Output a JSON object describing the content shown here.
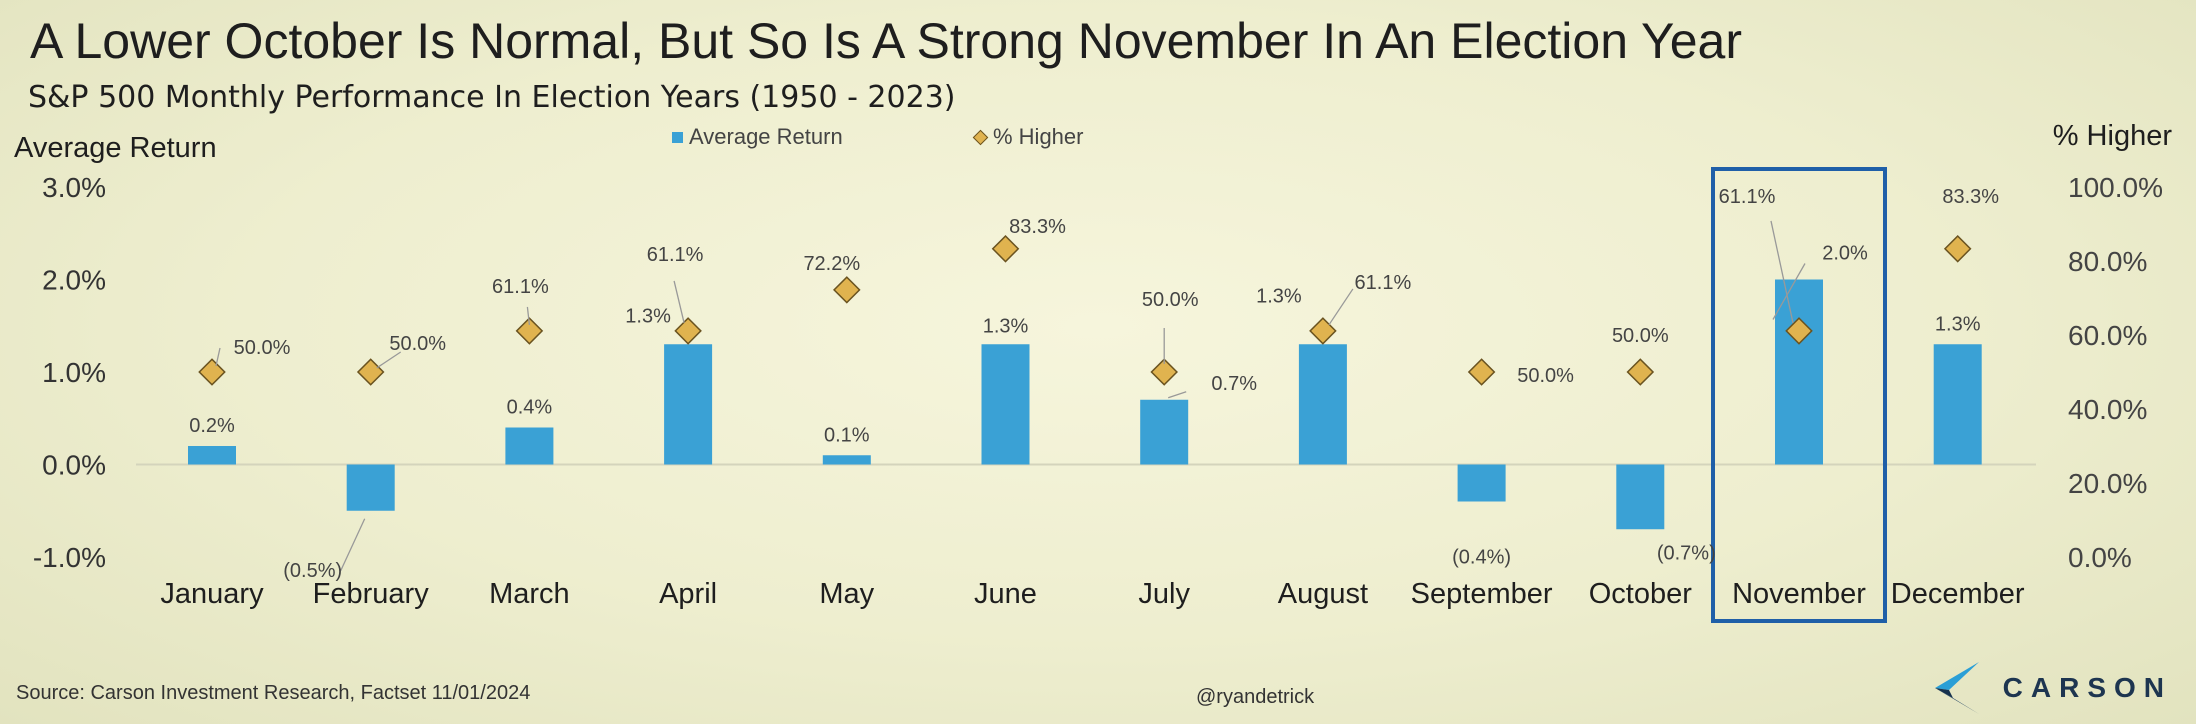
{
  "header": {
    "title": "A Lower October Is Normal, But So Is A Strong November In An Election Year",
    "subtitle": "S&P 500 Monthly Performance In Election Years (1950 - 2023)"
  },
  "chart_data": {
    "type": "bar",
    "categories": [
      "January",
      "February",
      "March",
      "April",
      "May",
      "June",
      "July",
      "August",
      "September",
      "October",
      "November",
      "December"
    ],
    "series": [
      {
        "name": "Average Return",
        "axis": "left",
        "mark": "bar",
        "values": [
          0.2,
          -0.5,
          0.4,
          1.3,
          0.1,
          1.3,
          0.7,
          1.3,
          -0.4,
          -0.7,
          2.0,
          1.3
        ],
        "labels": [
          "0.2%",
          "(0.5%)",
          "0.4%",
          "1.3%",
          "0.1%",
          "1.3%",
          "0.7%",
          "1.3%",
          "(0.4%)",
          "(0.7%)",
          "2.0%",
          "1.3%"
        ],
        "color": "#3aa1d5"
      },
      {
        "name": "% Higher",
        "axis": "right",
        "mark": "diamond",
        "values": [
          50.0,
          50.0,
          61.1,
          61.1,
          72.2,
          83.3,
          50.0,
          61.1,
          50.0,
          50.0,
          61.1,
          83.3
        ],
        "labels": [
          "50.0%",
          "50.0%",
          "61.1%",
          "61.1%",
          "72.2%",
          "83.3%",
          "50.0%",
          "61.1%",
          "50.0%",
          "50.0%",
          "61.1%",
          "83.3%"
        ],
        "color": "#e0b34f"
      }
    ],
    "y_left": {
      "label": "Average Return",
      "range": [
        -1.0,
        3.0
      ],
      "ticks": [
        3.0,
        2.0,
        1.0,
        0.0,
        -1.0
      ],
      "tick_labels": [
        "3.0%",
        "2.0%",
        "1.0%",
        "0.0%",
        "-1.0%"
      ]
    },
    "y_right": {
      "label": "% Higher",
      "range": [
        0,
        100
      ],
      "ticks": [
        100,
        80,
        60,
        40,
        20,
        0
      ],
      "tick_labels": [
        "100.0%",
        "80.0%",
        "60.0%",
        "40.0%",
        "20.0%",
        "0.0%"
      ]
    },
    "highlight_category": "November",
    "legend": [
      "Average Return",
      "% Higher"
    ],
    "grid": false
  },
  "footer": {
    "source": "Source: Carson Investment Research, Factset 11/01/2024",
    "handle": "@ryandetrick",
    "logo": "CARSON"
  },
  "colors": {
    "bar": "#3aa1d5",
    "diamond": "#e0b34f",
    "highlight": "#1f5fa8",
    "logo": "#1d3550"
  }
}
